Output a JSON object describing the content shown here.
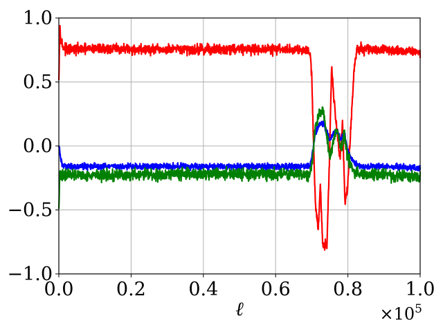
{
  "chart_data": {
    "type": "line",
    "title": "",
    "xlabel": "ℓ",
    "ylabel": "",
    "x_offset_label": "×10^5",
    "xlim": [
      0,
      100000
    ],
    "ylim": [
      -1.0,
      1.0
    ],
    "x_ticks": [
      {
        "value": 0,
        "label": "0.0"
      },
      {
        "value": 20000,
        "label": "0.2"
      },
      {
        "value": 40000,
        "label": "0.4"
      },
      {
        "value": 60000,
        "label": "0.6"
      },
      {
        "value": 80000,
        "label": "0.8"
      },
      {
        "value": 100000,
        "label": "1.0"
      }
    ],
    "y_ticks": [
      {
        "value": -1.0,
        "label": "−1.0"
      },
      {
        "value": -0.5,
        "label": "−0.5"
      },
      {
        "value": 0.0,
        "label": "0.0"
      },
      {
        "value": 0.5,
        "label": "0.5"
      },
      {
        "value": 1.0,
        "label": "1.0"
      }
    ],
    "grid": true,
    "legend": "none",
    "series": [
      {
        "color": "#ff0000",
        "noise": 0.02,
        "x": [
          0,
          300,
          600,
          1000,
          2000,
          10000,
          30000,
          50000,
          69500,
          70000,
          70500,
          71000,
          71800,
          72400,
          73000,
          73600,
          74200,
          74800,
          75500,
          76200,
          77000,
          77800,
          78500,
          79200,
          80000,
          80600,
          81200,
          81800,
          82500,
          83500,
          90000,
          100000
        ],
        "y": [
          0.55,
          0.92,
          0.85,
          0.78,
          0.75,
          0.76,
          0.75,
          0.76,
          0.75,
          0.55,
          0.0,
          -0.45,
          -0.65,
          -0.3,
          -0.77,
          -0.78,
          -0.77,
          -0.2,
          0.62,
          0.35,
          0.1,
          -0.1,
          0.2,
          -0.45,
          -0.3,
          0.05,
          0.35,
          0.62,
          0.75,
          0.76,
          0.75,
          0.74
        ]
      },
      {
        "color": "#0000ff",
        "noise": 0.012,
        "x": [
          0,
          300,
          600,
          1000,
          2000,
          10000,
          30000,
          50000,
          69500,
          70200,
          71000,
          72000,
          73000,
          74000,
          75000,
          76000,
          77000,
          78000,
          79000,
          80000,
          81000,
          82000,
          83000,
          90000,
          100000
        ],
        "y": [
          0.0,
          -0.05,
          -0.12,
          -0.15,
          -0.16,
          -0.16,
          -0.16,
          -0.16,
          -0.16,
          -0.05,
          0.1,
          0.16,
          0.18,
          0.12,
          0.05,
          0.1,
          0.12,
          0.05,
          0.1,
          -0.05,
          -0.1,
          -0.14,
          -0.16,
          -0.16,
          -0.17
        ]
      },
      {
        "color": "#008000",
        "noise": 0.022,
        "x": [
          0,
          300,
          600,
          1000,
          2000,
          10000,
          30000,
          50000,
          69500,
          70200,
          71000,
          72000,
          73000,
          74000,
          75000,
          76000,
          77000,
          78000,
          79000,
          80000,
          81000,
          82000,
          83000,
          90000,
          100000
        ],
        "y": [
          -0.5,
          -0.2,
          -0.25,
          -0.23,
          -0.22,
          -0.23,
          -0.22,
          -0.22,
          -0.22,
          -0.1,
          0.15,
          0.25,
          0.28,
          0.12,
          -0.1,
          0.05,
          0.15,
          -0.05,
          0.1,
          -0.1,
          -0.15,
          -0.22,
          -0.22,
          -0.23,
          -0.24
        ]
      }
    ]
  }
}
